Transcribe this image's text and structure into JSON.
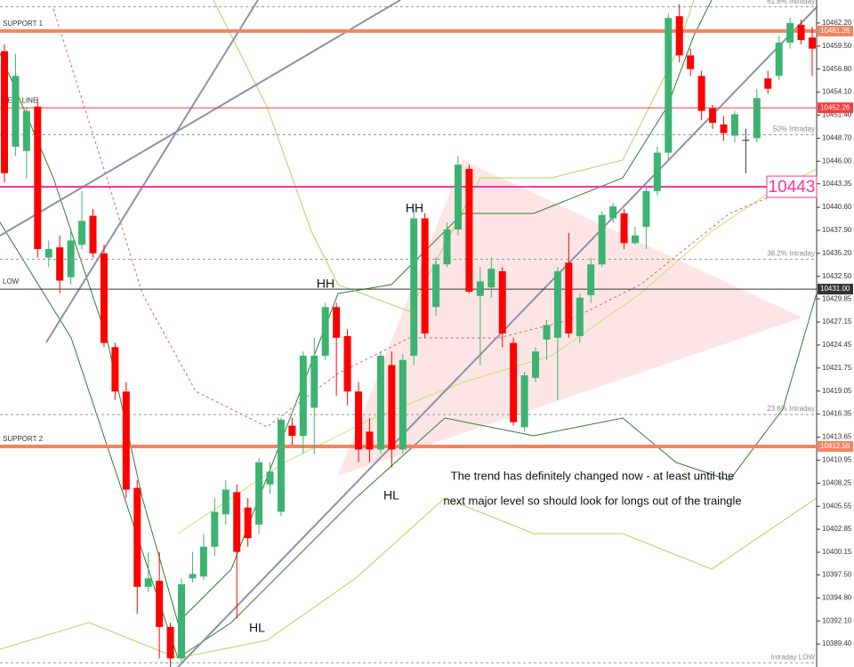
{
  "chart_data": {
    "type": "candlestick",
    "up_color": "#3cb371",
    "down_color": "#ff0000",
    "doji_color": "#333333",
    "open": [
      10458.9,
      10447.7,
      10447.2,
      10452.4,
      10434.7,
      10435.9,
      10432.4,
      10436.2,
      10439.6,
      10435.2,
      10424.2,
      10419.0,
      10407.7,
      10396.1,
      10396.8,
      10391.4,
      10387.7,
      10397.1,
      10397.3,
      10400.8,
      10404.6,
      10407.2,
      10405.4,
      10403.4,
      10408.1,
      10404.9,
      10415.0,
      10413.8,
      10417.1,
      10423.2,
      10428.9,
      10425.5,
      10419.0,
      10414.3,
      10412.2,
      10422.1,
      10412.2,
      10423.2,
      10439.3,
      10428.9,
      10433.9,
      10438.0,
      10445.1,
      10430.2,
      10431.2,
      10433.1,
      10424.7,
      10414.8,
      10420.6,
      10425.1,
      10425.3,
      10434.1,
      10425.5,
      10430.3,
      10433.9,
      10439.3,
      10439.9,
      10436.4,
      10438.3,
      10442.5,
      10447.0,
      10463.0,
      10458.4,
      10456.0,
      10452.2,
      10450.3,
      10449.0,
      10448.5,
      10448.7,
      10455.7,
      10456.0,
      10459.9,
      10462.0,
      10460.5
    ],
    "high": [
      10459.7,
      10458.6,
      10452.4,
      10453.4,
      10436.7,
      10437.3,
      10437.8,
      10442.5,
      10440.4,
      10436.2,
      10424.7,
      10420.1,
      10408.6,
      10400.2,
      10400.2,
      10391.9,
      10397.1,
      10400.2,
      10402.3,
      10406.5,
      10408.6,
      10408.1,
      10406.5,
      10411.2,
      10410.7,
      10415.9,
      10415.9,
      10423.7,
      10425.3,
      10429.4,
      10429.4,
      10426.3,
      10420.1,
      10415.9,
      10423.7,
      10423.7,
      10423.4,
      10440.4,
      10439.9,
      10434.7,
      10438.8,
      10446.6,
      10445.6,
      10433.6,
      10434.7,
      10433.6,
      10425.3,
      10421.3,
      10424.2,
      10427.4,
      10433.6,
      10437.6,
      10430.5,
      10434.7,
      10440.1,
      10441.1,
      10440.4,
      10438.3,
      10443.0,
      10447.7,
      10463.3,
      10464.4,
      10459.2,
      10456.6,
      10452.6,
      10451.3,
      10451.9,
      10449.8,
      10454.5,
      10456.6,
      10460.7,
      10462.8,
      10462.6,
      10461.8
    ],
    "low": [
      10443.5,
      10446.6,
      10444.0,
      10434.7,
      10433.6,
      10430.5,
      10431.5,
      10435.7,
      10434.7,
      10424.2,
      10418.0,
      10406.5,
      10392.9,
      10395.5,
      10387.7,
      10386.7,
      10387.2,
      10396.6,
      10396.9,
      10399.7,
      10403.4,
      10392.4,
      10400.8,
      10402.3,
      10407.0,
      10404.4,
      10412.7,
      10411.7,
      10411.7,
      10422.7,
      10418.5,
      10417.4,
      10410.7,
      10410.7,
      10411.7,
      10410.1,
      10411.7,
      10422.1,
      10425.3,
      10427.9,
      10433.6,
      10437.3,
      10430.5,
      10422.1,
      10430.0,
      10424.2,
      10415.0,
      10414.3,
      10420.1,
      10422.7,
      10418.0,
      10425.3,
      10424.7,
      10429.4,
      10433.6,
      10438.8,
      10435.7,
      10436.2,
      10435.7,
      10442.0,
      10446.1,
      10457.6,
      10456.0,
      10450.8,
      10449.8,
      10448.4,
      10448.2,
      10444.6,
      10448.2,
      10453.9,
      10455.5,
      10459.2,
      10459.7,
      10456.0
    ],
    "close": [
      10444.6,
      10456.0,
      10451.9,
      10435.7,
      10435.7,
      10432.0,
      10436.7,
      10439.0,
      10435.2,
      10424.7,
      10419.0,
      10407.5,
      10396.1,
      10397.1,
      10391.4,
      10387.7,
      10396.4,
      10397.6,
      10400.8,
      10404.9,
      10407.5,
      10400.2,
      10401.8,
      10410.7,
      10409.6,
      10415.7,
      10413.8,
      10423.2,
      10423.2,
      10428.9,
      10425.3,
      10419.0,
      10412.2,
      10412.2,
      10423.2,
      10412.2,
      10422.7,
      10439.3,
      10425.8,
      10433.9,
      10438.0,
      10445.6,
      10430.7,
      10431.9,
      10433.4,
      10425.8,
      10415.4,
      10420.9,
      10423.7,
      10426.8,
      10433.1,
      10425.8,
      10430.0,
      10433.9,
      10439.7,
      10440.7,
      10436.4,
      10437.3,
      10442.5,
      10447.0,
      10462.8,
      10458.4,
      10456.8,
      10451.9,
      10450.5,
      10449.3,
      10451.5,
      10448.5,
      10453.4,
      10454.5,
      10459.9,
      10462.2,
      10460.2,
      10459.2
    ],
    "ylim": [
      10386.7,
      10464.9
    ],
    "yticks": [
      {
        "value": 10462.2,
        "label": "10462.20"
      },
      {
        "value": 10459.5,
        "label": "10459.50"
      },
      {
        "value": 10456.8,
        "label": "10456.80"
      },
      {
        "value": 10454.1,
        "label": "10454.10"
      },
      {
        "value": 10451.4,
        "label": "10451.40"
      },
      {
        "value": 10448.7,
        "label": "10448.70"
      },
      {
        "value": 10446.0,
        "label": "10446.00"
      },
      {
        "value": 10443.35,
        "label": "10443.35"
      },
      {
        "value": 10440.6,
        "label": "10440.60"
      },
      {
        "value": 10437.9,
        "label": "10437.90"
      },
      {
        "value": 10435.2,
        "label": "10435.20"
      },
      {
        "value": 10432.5,
        "label": "10432.50"
      },
      {
        "value": 10429.85,
        "label": "10429.85"
      },
      {
        "value": 10427.15,
        "label": "10427.15"
      },
      {
        "value": 10424.45,
        "label": "10424.45"
      },
      {
        "value": 10421.75,
        "label": "10421.75"
      },
      {
        "value": 10419.05,
        "label": "10419.05"
      },
      {
        "value": 10416.35,
        "label": "10416.35"
      },
      {
        "value": 10413.65,
        "label": "10413.65"
      },
      {
        "value": 10410.95,
        "label": "10410.95"
      },
      {
        "value": 10408.25,
        "label": "10408.25"
      },
      {
        "value": 10405.55,
        "label": "10405.55"
      },
      {
        "value": 10402.85,
        "label": "10402.85"
      },
      {
        "value": 10400.15,
        "label": "10400.15"
      },
      {
        "value": 10397.5,
        "label": "10397.50"
      },
      {
        "value": 10394.8,
        "label": "10394.80"
      },
      {
        "value": 10392.1,
        "label": "10392.10"
      },
      {
        "value": 10389.4,
        "label": "10389.40"
      }
    ],
    "levels": [
      {
        "name": "SUPPORT 1",
        "value": 10461.26,
        "label": "10461.26",
        "color": "#f4845f",
        "width": 4
      },
      {
        "name": "SELL LINE",
        "value": 10452.26,
        "label": "10452.26",
        "color": "#ff3b3b",
        "width": 1
      },
      {
        "name": "LOW",
        "value": 10431.0,
        "label": "10431.00",
        "color": "#333333",
        "width": 1
      },
      {
        "name": "SUPPORT 2",
        "value": 10412.56,
        "label": "10412.56",
        "color": "#f4845f",
        "width": 4
      }
    ],
    "price_marker": {
      "value": 10443,
      "color": "#ff3399"
    },
    "fib_levels": [
      {
        "label": "61.8% Intraday",
        "value": 10464.1
      },
      {
        "label": "50% Intraday",
        "value": 10449.1
      },
      {
        "label": "38.2% Intraday",
        "value": 10434.5
      },
      {
        "label": "23.6% Intraday",
        "value": 10416.3
      },
      {
        "label": "Intraday LOW",
        "value": 10387.2
      }
    ],
    "annotations": [
      "HH",
      "HH",
      "HL",
      "HL"
    ],
    "note": [
      "The trend has definitely changed now - at least until the",
      "next major level so should look for longs out of the traingle"
    ]
  }
}
